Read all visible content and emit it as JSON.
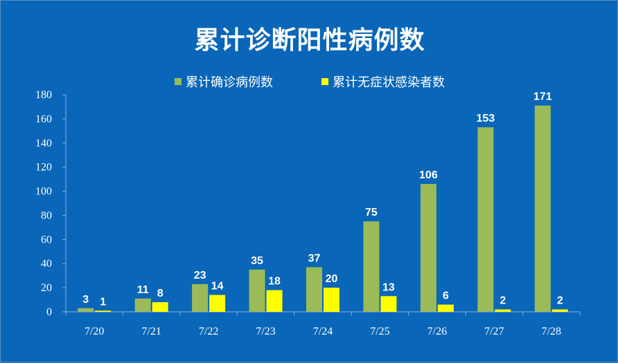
{
  "chart_data": {
    "type": "bar",
    "title": "累计诊断阳性病例数",
    "categories": [
      "7/20",
      "7/21",
      "7/22",
      "7/23",
      "7/24",
      "7/25",
      "7/26",
      "7/27",
      "7/28"
    ],
    "series": [
      {
        "name": "累计确诊病例数",
        "color": "#9bbb59",
        "values": [
          3,
          11,
          23,
          35,
          37,
          75,
          106,
          153,
          171
        ]
      },
      {
        "name": "累计无症状感染者数",
        "color": "#ffff00",
        "values": [
          1,
          8,
          14,
          18,
          20,
          13,
          6,
          2,
          2
        ]
      }
    ],
    "ylim": [
      0,
      180
    ],
    "yticks": [
      "0",
      "20",
      "40",
      "60",
      "80",
      "100",
      "120",
      "140",
      "160",
      "180"
    ],
    "grid": false,
    "legend_position": "top"
  }
}
